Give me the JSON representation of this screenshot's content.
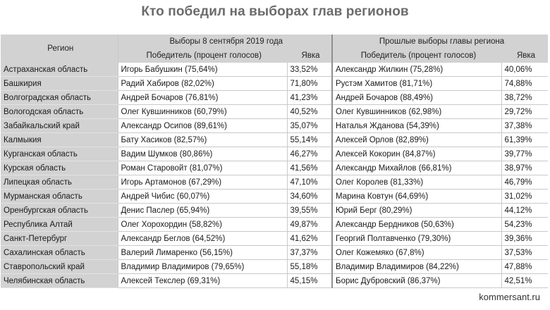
{
  "title": "Кто победил на выборах глав регионов",
  "headers": {
    "region": "Регион",
    "group_2019": "Выборы 8 сентября 2019 года",
    "group_prev": "Прошлые выборы главы региона",
    "winner": "Победитель (процент голосов)",
    "turnout": "Явка"
  },
  "rows": [
    {
      "region": "Астраханская область",
      "w2019": "Игорь Бабушкин (75,64%)",
      "t2019": "33,52%",
      "wprev": "Александр Жилкин (75,28%)",
      "tprev": "40,06%"
    },
    {
      "region": "Башкирия",
      "w2019": "Радий Хабиров (82,02%)",
      "t2019": "71,80%",
      "wprev": "Рустэм Хамитов (81,71%)",
      "tprev": "74,88%"
    },
    {
      "region": "Волгоградская область",
      "w2019": "Андрей Бочаров (76,81%)",
      "t2019": "41,23%",
      "wprev": "Андрей Бочаров (88,49%)",
      "tprev": "38,72%"
    },
    {
      "region": "Вологодская область",
      "w2019": "Олег Кувшинников (60,79%)",
      "t2019": "40,52%",
      "wprev": "Олег Кувшинников (62,98%)",
      "tprev": "29,72%"
    },
    {
      "region": "Забайкальский край",
      "w2019": "Александр Осипов (89,61%)",
      "t2019": "35,07%",
      "wprev": "Наталья Жданова (54,39%)",
      "tprev": "37,38%"
    },
    {
      "region": "Калмыкия",
      "w2019": "Бату Хасиков (82,57%)",
      "t2019": "55,14%",
      "wprev": "Алексей Орлов (82,89%)",
      "tprev": "61,39%"
    },
    {
      "region": "Курганская область",
      "w2019": "Вадим Шумков (80,86%)",
      "t2019": "46,27%",
      "wprev": "Алексей Кокорин (84,87%)",
      "tprev": "39,77%"
    },
    {
      "region": "Курская область",
      "w2019": "Роман Старовойт (81,07%)",
      "t2019": "41,56%",
      "wprev": "Александр Михайлов (66,81%)",
      "tprev": "38,97%"
    },
    {
      "region": "Липецкая область",
      "w2019": "Игорь Артамонов (67,29%)",
      "t2019": "47,10%",
      "wprev": "Олег Королев (81,33%)",
      "tprev": "46,79%"
    },
    {
      "region": "Мурманская область",
      "w2019": "Андрей Чибис (60,07%)",
      "t2019": "34,60%",
      "wprev": "Марина Ковтун (64,69%)",
      "tprev": "31,02%"
    },
    {
      "region": "Оренбургская область",
      "w2019": "Денис Паслер (65,94%)",
      "t2019": "39,55%",
      "wprev": "Юрий Берг (80,29%)",
      "tprev": "44,12%"
    },
    {
      "region": "Республика Алтай",
      "w2019": "Олег Хорохордин (58,82%)",
      "t2019": "49,87%",
      "wprev": "Александр Бердников (50,63%)",
      "tprev": "54,23%"
    },
    {
      "region": "Санкт-Петербург",
      "w2019": "Александр Беглов (64,52%)",
      "t2019": "41,62%",
      "wprev": "Георгий Полтавченко (79,30%)",
      "tprev": "39,36%"
    },
    {
      "region": "Сахалинская область",
      "w2019": "Валерий Лимаренко (56,15%)",
      "t2019": "37,37%",
      "wprev": "Олег Кожемяко (67,8%)",
      "tprev": "37,53%"
    },
    {
      "region": "Ставропольский край",
      "w2019": "Владимир Владимиров (79,65%)",
      "t2019": "55,18%",
      "wprev": "Владимир Владимиров (84,22%)",
      "tprev": "47,88%"
    },
    {
      "region": "Челябинская область",
      "w2019": "Алексей Текслер (69,31%)",
      "t2019": "45,15%",
      "wprev": "Борис Дубровский (86,37%)",
      "tprev": "42,51%"
    }
  ],
  "source": "kommersant.ru"
}
